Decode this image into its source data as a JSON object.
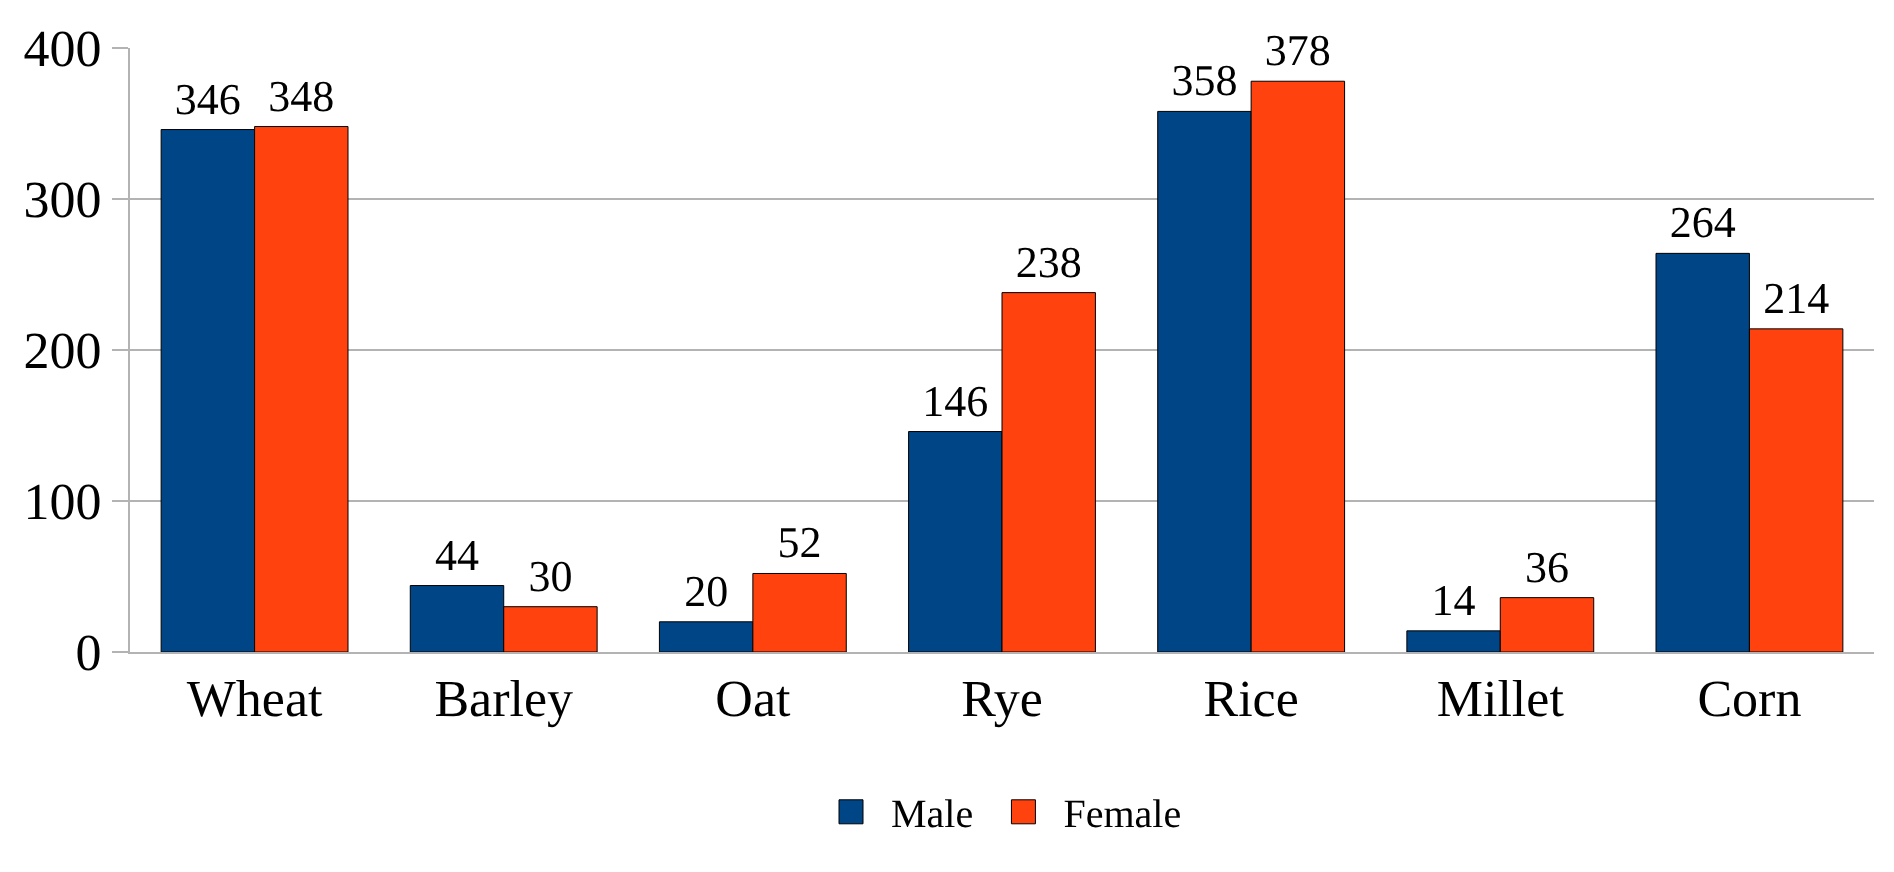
{
  "chart_data": {
    "type": "bar",
    "categories": [
      "Wheat",
      "Barley",
      "Oat",
      "Rye",
      "Rice",
      "Millet",
      "Corn"
    ],
    "series": [
      {
        "name": "Male",
        "color": "#004586",
        "values": [
          346,
          44,
          20,
          146,
          358,
          14,
          264
        ]
      },
      {
        "name": "Female",
        "color": "#ff420e",
        "values": [
          348,
          30,
          52,
          238,
          378,
          36,
          214
        ]
      }
    ],
    "ylim": [
      0,
      400
    ],
    "yticks": [
      0,
      100,
      200,
      300,
      400
    ],
    "grid": "y",
    "legend": "bottom",
    "data_labels": true
  }
}
